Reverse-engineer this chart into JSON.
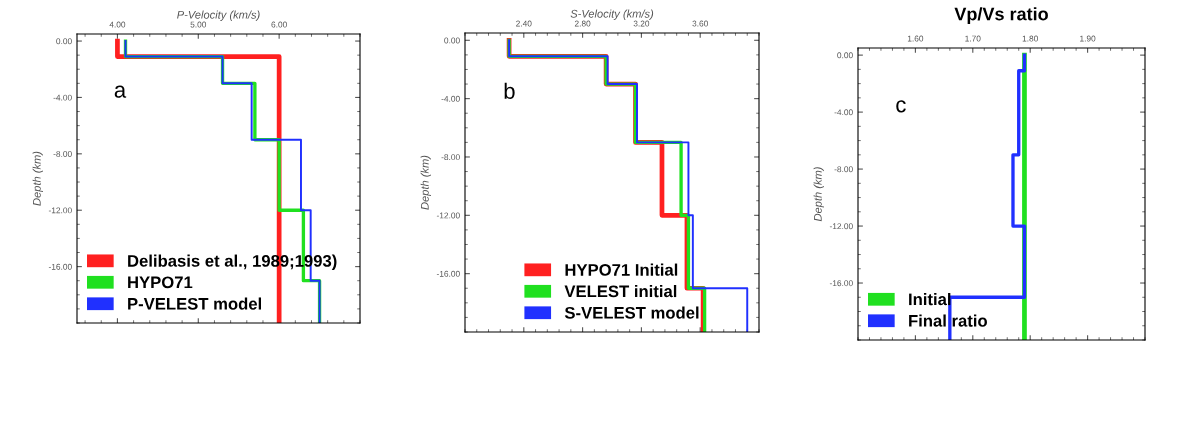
{
  "chart_data": [
    {
      "type": "line",
      "xlabel": "P-Velocity (km/s)",
      "ylabel": "Depth (km)",
      "annotations": [
        "a"
      ],
      "xlim": [
        3.5,
        7.0
      ],
      "xticks": [
        {
          "value": 4,
          "label": "4.00"
        },
        {
          "value": 5,
          "label": "5.00"
        },
        {
          "value": 6,
          "label": "6.00"
        }
      ],
      "ylim": [
        -20,
        0.5
      ],
      "yticks": [
        {
          "value": 0,
          "label": "0.00"
        },
        {
          "value": -4,
          "label": "-4.00"
        },
        {
          "value": -8,
          "label": "-8.00"
        },
        {
          "value": -12,
          "label": "-12.00"
        },
        {
          "value": -16,
          "label": "-16.00"
        }
      ],
      "grid": false,
      "legend": "bottom left",
      "series": [
        {
          "name": "Delibasis et al., 1989;1993)",
          "color": "#ff2020",
          "x": [
            4.0,
            4.0,
            6.0,
            6.0
          ],
          "values": [
            0,
            -1.1,
            -1.1,
            -20
          ]
        },
        {
          "name": "HYPO71",
          "color": "#20e020",
          "x": [
            4.1,
            4.1,
            5.3,
            5.3,
            5.7,
            5.7,
            6.0,
            6.0,
            6.3,
            6.3,
            6.5,
            6.5
          ],
          "values": [
            0,
            -1.1,
            -1.1,
            -3,
            -3,
            -7,
            -7,
            -12,
            -12,
            -17,
            -17,
            -20
          ]
        },
        {
          "name": "P-VELEST model",
          "color": "#2030ff",
          "x": [
            4.1,
            4.1,
            5.3,
            5.3,
            5.66,
            5.66,
            6.27,
            6.27,
            6.39,
            6.39,
            6.5,
            6.5
          ],
          "values": [
            0,
            -1.1,
            -1.1,
            -3,
            -3,
            -7,
            -7,
            -12,
            -12,
            -17,
            -17,
            -20
          ]
        }
      ]
    },
    {
      "type": "line",
      "xlabel": "S-Velocity (km/s)",
      "ylabel": "Depth (km)",
      "annotations": [
        "b"
      ],
      "xlim": [
        2.0,
        4.0
      ],
      "xticks": [
        {
          "value": 2.4,
          "label": "2.40"
        },
        {
          "value": 2.8,
          "label": "2.80"
        },
        {
          "value": 3.2,
          "label": "3.20"
        },
        {
          "value": 3.6,
          "label": "3.60"
        }
      ],
      "ylim": [
        -20,
        0.5
      ],
      "yticks": [
        {
          "value": 0,
          "label": "0.00"
        },
        {
          "value": -4,
          "label": "-4.00"
        },
        {
          "value": -8,
          "label": "-8.00"
        },
        {
          "value": -12,
          "label": "-12.00"
        },
        {
          "value": -16,
          "label": "-16.00"
        }
      ],
      "grid": false,
      "legend": "bottom",
      "series": [
        {
          "name": "HYPO71 Initial",
          "color": "#ff2020",
          "x": [
            2.3,
            2.3,
            2.96,
            2.96,
            3.16,
            3.16,
            3.34,
            3.34,
            3.51,
            3.51,
            3.62,
            3.62
          ],
          "values": [
            0,
            -1.1,
            -1.1,
            -3,
            -3,
            -7,
            -7,
            -12,
            -12,
            -17,
            -17,
            -20
          ]
        },
        {
          "name": "VELEST initial",
          "color": "#20e020",
          "x": [
            2.3,
            2.3,
            2.96,
            2.96,
            3.16,
            3.16,
            3.47,
            3.47,
            3.52,
            3.52,
            3.63,
            3.63
          ],
          "values": [
            0,
            -1.1,
            -1.1,
            -3,
            -3,
            -7,
            -7,
            -12,
            -12,
            -17,
            -17,
            -20
          ]
        },
        {
          "name": "S-VELEST model",
          "color": "#2030ff",
          "x": [
            2.3,
            2.3,
            2.97,
            2.97,
            3.17,
            3.17,
            3.52,
            3.52,
            3.55,
            3.55,
            3.92,
            3.92
          ],
          "values": [
            0,
            -1.1,
            -1.1,
            -3,
            -3,
            -7,
            -7,
            -12,
            -12,
            -17,
            -17,
            -20
          ]
        }
      ]
    },
    {
      "type": "line",
      "title": "Vp/Vs ratio",
      "ylabel": "Depth (km)",
      "annotations": [
        "c"
      ],
      "xlim": [
        1.5,
        2.0
      ],
      "xticks": [
        {
          "value": 1.6,
          "label": "1.60"
        },
        {
          "value": 1.7,
          "label": "1.70"
        },
        {
          "value": 1.8,
          "label": "1.80"
        },
        {
          "value": 1.9,
          "label": "1.90"
        }
      ],
      "ylim": [
        -20,
        0.5
      ],
      "yticks": [
        {
          "value": 0,
          "label": "0.00"
        },
        {
          "value": -4,
          "label": "-4.00"
        },
        {
          "value": -8,
          "label": "-8.00"
        },
        {
          "value": -12,
          "label": "-12.00"
        },
        {
          "value": -16,
          "label": "-16.00"
        }
      ],
      "grid": false,
      "legend": "bottom left",
      "series": [
        {
          "name": "Initial",
          "color": "#20e020",
          "x": [
            1.79,
            1.79
          ],
          "values": [
            0,
            -20
          ]
        },
        {
          "name": "Final ratio",
          "color": "#2030ff",
          "x": [
            1.79,
            1.79,
            1.78,
            1.78,
            1.77,
            1.77,
            1.79,
            1.79,
            1.66,
            1.66
          ],
          "values": [
            0,
            -1.1,
            -1.1,
            -7,
            -7,
            -12,
            -12,
            -17,
            -17,
            -20
          ]
        }
      ]
    }
  ]
}
